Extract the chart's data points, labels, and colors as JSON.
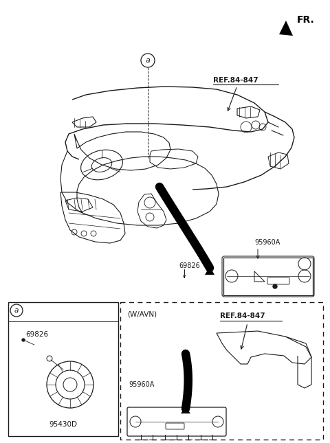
{
  "bg_color": "#ffffff",
  "line_color": "#1a1a1a",
  "fig_width": 4.8,
  "fig_height": 6.45,
  "dpi": 100,
  "fr_label": "FR.",
  "ref_label_1": "REF.84-847",
  "ref_label_2": "REF.84-847",
  "label_a": "a",
  "part_69826": "69826",
  "part_95960A_1": "95960A",
  "part_95960A_2": "95960A",
  "part_95430D": "95430D",
  "wavN_label": "(W/AVN)"
}
